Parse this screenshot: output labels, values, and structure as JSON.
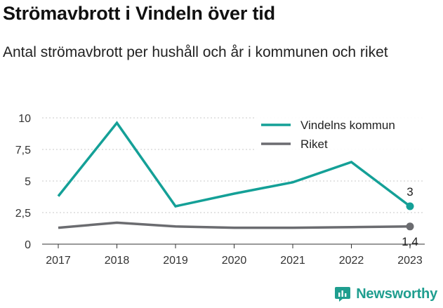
{
  "title": "Strömavbrott i Vindeln över tid",
  "subtitle": "Antal strömavbrott per hushåll och år i kommunen och riket",
  "brand": {
    "name": "Newsworthy",
    "icon": "bar-chart-logo-icon",
    "color": "#1f9e8f"
  },
  "chart_data": {
    "type": "line",
    "categories": [
      "2017",
      "2018",
      "2019",
      "2020",
      "2021",
      "2022",
      "2023"
    ],
    "series": [
      {
        "name": "Vindelns kommun",
        "color": "#14a097",
        "values": [
          3.8,
          9.6,
          3.0,
          4.0,
          4.9,
          6.5,
          3.0
        ]
      },
      {
        "name": "Riket",
        "color": "#6b6c70",
        "values": [
          1.3,
          1.7,
          1.4,
          1.3,
          1.3,
          1.35,
          1.4
        ]
      }
    ],
    "yticks": [
      {
        "value": 0,
        "label": "0"
      },
      {
        "value": 2.5,
        "label": "2,5"
      },
      {
        "value": 5,
        "label": "5"
      },
      {
        "value": 7.5,
        "label": "7,5"
      },
      {
        "value": 10,
        "label": "10"
      }
    ],
    "ylim": [
      0,
      10
    ],
    "end_labels": [
      "3",
      "1,4"
    ],
    "grid": "horizontal-dashed",
    "legend_position": "top-right"
  }
}
